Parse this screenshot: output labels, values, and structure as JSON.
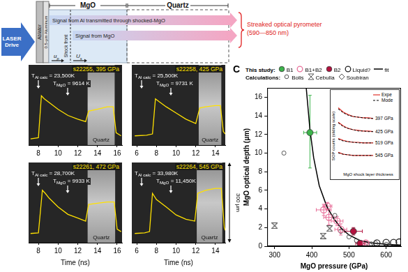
{
  "schematic": {
    "laser": "LASER Drive",
    "ablator": "Ablator",
    "aluminum": "0.5-µm Aluminum",
    "mgo": "MgO",
    "quartz": "Quartz",
    "shock_front": "Shock front",
    "up": {
      "main": "u",
      "sub": "p"
    },
    "us": {
      "main": "U",
      "sub": "s"
    },
    "signal_al": "Signal from Al transmitted through shocked-MgO",
    "signal_mgo": "Signal from MgO",
    "pyrometer": "Streaked optical pyrometer",
    "pyrometer_band": "(590—850 nm)"
  },
  "streak_images": {
    "x_label": "Time (ns)",
    "scale_bar": "300 µm",
    "ylim": [
      0,
      130
    ],
    "tick_labels": "x",
    "panels": [
      {
        "title": "s22255, 395 GPa",
        "al_label": {
          "main": "T",
          "sub": "Al calc",
          "rest": " = 23,500K"
        },
        "mgo_label": {
          "main": "T",
          "sub": "MgO",
          "rest": " = 9614 K"
        },
        "quartz_label": "Quartz",
        "quartz_window": [
          13.0,
          15.75
        ],
        "xlim": [
          7,
          16.5
        ],
        "xticks": [
          8,
          10,
          12,
          14,
          16
        ],
        "color": "#ffe100",
        "x": [
          7.2,
          8.0,
          8.3,
          8.6,
          9.0,
          10,
          11,
          12,
          12.8,
          13.1,
          14,
          15,
          15.6,
          15.9,
          16.4
        ],
        "values": [
          10,
          12,
          80,
          75,
          70,
          58,
          48,
          42,
          38,
          55,
          58,
          62,
          62,
          20,
          15
        ]
      },
      {
        "title": "s22258, 425 GPa",
        "al_label": {
          "main": "T",
          "sub": "Al calc",
          "rest": " = 25,500K"
        },
        "mgo_label": {
          "main": "T",
          "sub": "MgO",
          "rest": " = 9731 K"
        },
        "quartz_label": "Quartz",
        "quartz_window": [
          12.3,
          14.6
        ],
        "xlim": [
          5.5,
          15
        ],
        "xticks": [
          6,
          8,
          10,
          12,
          14
        ],
        "color": "#ffe100",
        "x": [
          5.8,
          7,
          7.6,
          7.9,
          8.3,
          9,
          10,
          11,
          12,
          12.4,
          13,
          14,
          14.5,
          14.8,
          15
        ],
        "values": [
          15,
          16,
          18,
          75,
          70,
          62,
          52,
          42,
          35,
          60,
          62,
          64,
          64,
          22,
          18
        ]
      },
      {
        "title": "s22261, 472 GPa",
        "al_label": {
          "main": "T",
          "sub": "Al calc",
          "rest": " = 28,700K"
        },
        "mgo_label": {
          "main": "T",
          "sub": "MgO",
          "rest": " = 9933 K"
        },
        "quartz_label": "Quartz",
        "quartz_window": [
          13.0,
          15.8
        ],
        "xlim": [
          7,
          16.5
        ],
        "xticks": [
          8,
          10,
          12,
          14,
          16
        ],
        "color": "#ffe100",
        "x": [
          7.2,
          8.0,
          8.4,
          8.7,
          9.1,
          10,
          11,
          12,
          12.8,
          13.1,
          14,
          15,
          15.7,
          16.0,
          16.4
        ],
        "values": [
          15,
          16,
          85,
          80,
          72,
          58,
          46,
          40,
          35,
          62,
          64,
          66,
          66,
          22,
          18
        ]
      },
      {
        "title": "s22264, 545 GPa",
        "al_label": {
          "main": "T",
          "sub": "Al calc",
          "rest": " = 33,980K"
        },
        "mgo_label": {
          "main": "T",
          "sub": "MgO",
          "rest": " = 11,450K"
        },
        "quartz_label": "Quartz",
        "quartz_window": [
          12.1,
          14.7
        ],
        "xlim": [
          5.5,
          15
        ],
        "xticks": [
          6,
          8,
          10,
          12,
          14
        ],
        "color": "#ffe100",
        "x": [
          5.8,
          6.8,
          7.3,
          7.6,
          8.0,
          9,
          10,
          11,
          11.9,
          12.2,
          13,
          14,
          14.6,
          14.9,
          15
        ],
        "values": [
          15,
          16,
          18,
          80,
          70,
          58,
          45,
          38,
          35,
          80,
          85,
          88,
          88,
          25,
          20
        ]
      }
    ]
  },
  "chart_data": {
    "type": "scatter",
    "panel": "C",
    "x_label": "MgO pressure (GPa)",
    "y_label": "MgO optical depth (µm)",
    "xlim": [
      280,
      640
    ],
    "xticks": [
      300,
      400,
      500,
      600
    ],
    "ylim": [
      0,
      17
    ],
    "yticks": [
      0,
      2,
      4,
      6,
      8,
      10,
      12,
      14,
      16
    ],
    "grid": false,
    "legend": "top",
    "legend_groups": [
      {
        "title": "This study:",
        "series": [
          "B1",
          "B1+B2",
          "B2",
          "Liquid?",
          "fit"
        ]
      },
      {
        "title": "Calculations:",
        "series": [
          "Bolis",
          "Cebulla",
          "Soubiran"
        ]
      }
    ],
    "series": [
      {
        "name": "B1",
        "marker": "filled_circle",
        "color": "#3cb44b",
        "x": [
          395
        ],
        "values": [
          12.2
        ],
        "xerr": [
          [
            378,
            413
          ]
        ],
        "yerr": [
          [
            8.4,
            16.2
          ]
        ]
      },
      {
        "name": "B1+B2",
        "marker": "open_circle",
        "color": "#e8709a",
        "x": [
          432,
          442,
          446,
          468,
          478,
          545
        ],
        "values": [
          3.9,
          4.3,
          3.1,
          2.7,
          1.8,
          0.35
        ],
        "xerr": [
          [
            412,
            452
          ],
          [
            430,
            454
          ],
          [
            432,
            460
          ],
          [
            452,
            484
          ],
          [
            462,
            494
          ],
          [
            535,
            555
          ]
        ],
        "yerr": [
          [
            3.3,
            4.5
          ],
          [
            3.9,
            4.7
          ],
          [
            2.3,
            3.9
          ],
          [
            2.2,
            3.2
          ],
          [
            1.2,
            2.4
          ],
          [
            0.15,
            0.55
          ]
        ]
      },
      {
        "name": "B2",
        "marker": "filled_circle",
        "color": "#b3123f",
        "x": [
          512,
          530
        ],
        "values": [
          1.6,
          0.3
        ],
        "xerr": [
          [
            488,
            536
          ],
          [
            518,
            542
          ]
        ],
        "yerr": [
          [
            1.2,
            2.0
          ],
          [
            0.1,
            0.5
          ]
        ]
      },
      {
        "name": "Liquid?",
        "marker": "open_circle",
        "color": "#222222",
        "x": [
          575,
          600,
          620,
          635
        ],
        "values": [
          0.35,
          0.4,
          0.4,
          0.45
        ]
      },
      {
        "name": "fit",
        "type": "line",
        "line_style": "solid",
        "color": "#000000",
        "x": [
          385,
          395,
          405,
          420,
          440,
          460,
          480,
          500,
          530,
          560,
          600,
          640
        ],
        "values": [
          17,
          12.5,
          9.5,
          6.5,
          4.3,
          2.9,
          1.9,
          1.2,
          0.6,
          0.35,
          0.2,
          0.12
        ]
      },
      {
        "name": "Bolis",
        "marker": "small_open_circle",
        "color": "#555555",
        "x": [
          325,
          462,
          478,
          500,
          520,
          560,
          600
        ],
        "values": [
          10.0,
          3.3,
          1.6,
          1.0,
          0.6,
          0.25,
          0.2
        ]
      },
      {
        "name": "Cebulla",
        "marker": "hourglass",
        "color": "#555555",
        "x": [
          300,
          430,
          448
        ],
        "values": [
          2.2,
          1.1,
          1.9
        ]
      },
      {
        "name": "Soubiran",
        "marker": "open_diamond",
        "color": "#555555",
        "x": [
          555,
          572
        ],
        "values": [
          0.15,
          0.3
        ]
      }
    ],
    "inset": {
      "x_label": "MgO shock layer thickness",
      "y_label": "SOP counts (sliding scale)",
      "xlim": [
        0,
        7
      ],
      "ylim": [
        0,
        100
      ],
      "tick_labels": false,
      "x": [
        0,
        1,
        2,
        3,
        4,
        5,
        6,
        7
      ],
      "series": [
        {
          "name": "Expe",
          "color": "#e0312b",
          "line_style": "solid"
        },
        {
          "name": "Mode",
          "color": "#000000",
          "line_style": "dashed"
        }
      ],
      "traces": [
        {
          "label": "397 GPa",
          "experiment": [
            95,
            88,
            84,
            81,
            80,
            79,
            79,
            78
          ],
          "model": [
            93,
            87,
            83,
            81,
            80,
            79,
            78,
            78
          ]
        },
        {
          "label": "425 GPa",
          "experiment": [
            72,
            66,
            62,
            60,
            59,
            58,
            58,
            57
          ],
          "model": [
            71,
            65,
            62,
            60,
            58,
            58,
            57,
            57
          ]
        },
        {
          "label": "519 GPa",
          "experiment": [
            46,
            43,
            41,
            40,
            40,
            39,
            39,
            39
          ],
          "model": [
            45,
            42,
            41,
            40,
            39,
            39,
            39,
            39
          ]
        },
        {
          "label": "545 GPa",
          "experiment": [
            24,
            21,
            20,
            19,
            19,
            19,
            19,
            19
          ],
          "model": [
            23,
            21,
            20,
            19,
            19,
            19,
            19,
            19
          ]
        }
      ]
    }
  }
}
